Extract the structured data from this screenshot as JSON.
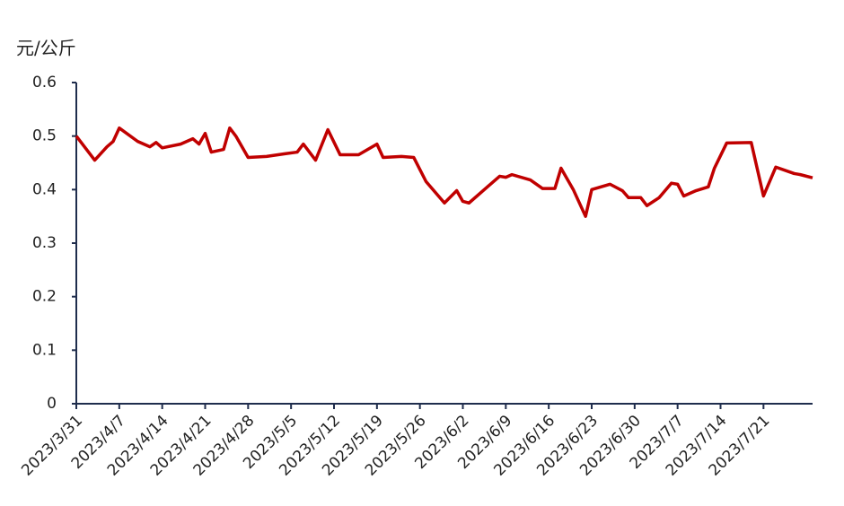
{
  "chart_data": {
    "type": "line",
    "y_label": "元/公斤",
    "x": [
      "2023/3/31",
      "2023/4/3",
      "2023/4/5",
      "2023/4/6",
      "2023/4/7",
      "2023/4/10",
      "2023/4/12",
      "2023/4/13",
      "2023/4/14",
      "2023/4/17",
      "2023/4/19",
      "2023/4/20",
      "2023/4/21",
      "2023/4/22",
      "2023/4/24",
      "2023/4/25",
      "2023/4/26",
      "2023/4/28",
      "2023/5/1",
      "2023/5/4",
      "2023/5/6",
      "2023/5/7",
      "2023/5/9",
      "2023/5/11",
      "2023/5/13",
      "2023/5/16",
      "2023/5/19",
      "2023/5/20",
      "2023/5/23",
      "2023/5/25",
      "2023/5/27",
      "2023/5/30",
      "2023/6/1",
      "2023/6/2",
      "2023/6/3",
      "2023/6/6",
      "2023/6/8",
      "2023/6/9",
      "2023/6/10",
      "2023/6/13",
      "2023/6/15",
      "2023/6/17",
      "2023/6/18",
      "2023/6/20",
      "2023/6/22",
      "2023/6/23",
      "2023/6/26",
      "2023/6/28",
      "2023/6/29",
      "2023/7/1",
      "2023/7/2",
      "2023/7/4",
      "2023/7/6",
      "2023/7/7",
      "2023/7/8",
      "2023/7/10",
      "2023/7/12",
      "2023/7/13",
      "2023/7/15",
      "2023/7/19",
      "2023/7/21",
      "2023/7/23",
      "2023/7/26",
      "2023/7/27",
      "2023/7/29"
    ],
    "series": [
      {
        "color": "#c00000",
        "values": [
          0.5,
          0.455,
          0.48,
          0.49,
          0.515,
          0.49,
          0.48,
          0.488,
          0.478,
          0.485,
          0.495,
          0.485,
          0.505,
          0.47,
          0.475,
          0.515,
          0.5,
          0.46,
          0.462,
          0.467,
          0.47,
          0.485,
          0.455,
          0.512,
          0.465,
          0.465,
          0.485,
          0.46,
          0.462,
          0.46,
          0.415,
          0.375,
          0.398,
          0.378,
          0.375,
          0.405,
          0.425,
          0.423,
          0.428,
          0.418,
          0.402,
          0.402,
          0.44,
          0.4,
          0.35,
          0.4,
          0.41,
          0.398,
          0.385,
          0.385,
          0.37,
          0.385,
          0.412,
          0.41,
          0.388,
          0.398,
          0.405,
          0.44,
          0.487,
          0.488,
          0.388,
          0.442,
          0.43,
          0.428,
          0.422
        ]
      }
    ],
    "xlim": [
      "2023/3/31",
      "2023/7/29"
    ],
    "xticks": [
      "2023/3/31",
      "2023/4/7",
      "2023/4/14",
      "2023/4/21",
      "2023/4/28",
      "2023/5/5",
      "2023/5/12",
      "2023/5/19",
      "2023/5/26",
      "2023/6/2",
      "2023/6/9",
      "2023/6/16",
      "2023/6/23",
      "2023/6/30",
      "2023/7/7",
      "2023/7/14",
      "2023/7/21"
    ],
    "ylim": [
      0,
      0.6
    ],
    "yticks": [
      0,
      0.1,
      0.2,
      0.3,
      0.4,
      0.5,
      0.6
    ],
    "axis_color": "#1f2d4d"
  }
}
